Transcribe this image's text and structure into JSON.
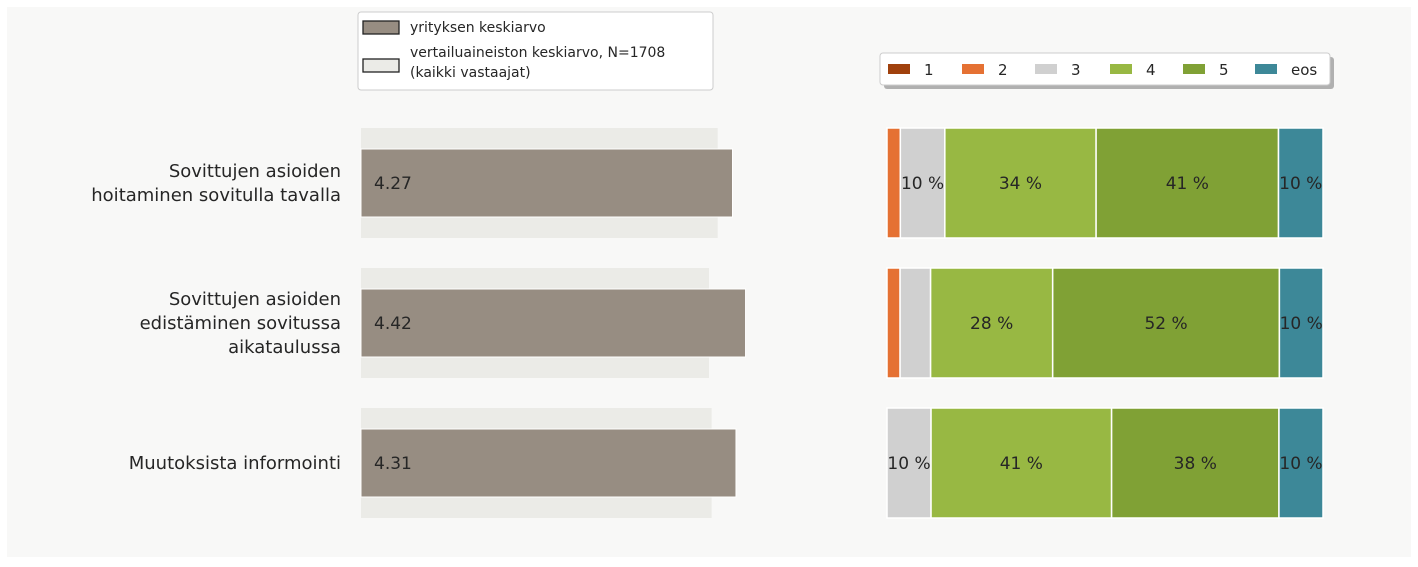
{
  "colors": {
    "panel_bg": "#f8f8f7",
    "company_bar": "#978d82",
    "company_bar_edge": "#ffffff",
    "reference_bar": "#ebebe7",
    "legend_border": "#cccccc",
    "legend_bg": "#ffffff",
    "legend_shadow": "#b0b0b0",
    "text": "#262626",
    "seg_1": "#a0410d",
    "seg_2": "#e57133",
    "seg_3": "#d0d0d0",
    "seg_4": "#98b843",
    "seg_5": "#80a135",
    "seg_eos": "#3d8898"
  },
  "legend_left": {
    "items": [
      {
        "label_lines": [
          "yrityksen keskiarvo"
        ],
        "swatch": "company"
      },
      {
        "label_lines": [
          "vertailuaineiston keskiarvo, N=1708",
          "(kaikki vastaajat)"
        ],
        "swatch": "reference"
      }
    ]
  },
  "legend_right": {
    "items": [
      "1",
      "2",
      "3",
      "4",
      "5",
      "eos"
    ]
  },
  "chart_data": [
    {
      "type": "bar",
      "orientation": "horizontal",
      "categories": [
        [
          "Sovittujen  asioiden",
          "hoitaminen sovitulla tavalla"
        ],
        [
          "Sovittujen asioiden",
          "edistäminen sovitussa",
          "aikataulussa"
        ],
        [
          "Muutoksista informointi"
        ]
      ],
      "series": [
        {
          "name": "yrityksen keskiarvo",
          "values": [
            4.27,
            4.42,
            4.31
          ],
          "value_labels": [
            "4.27",
            "4.42",
            "4.31"
          ]
        },
        {
          "name": "vertailuaineiston keskiarvo, N=1708 (kaikki vastaajat)",
          "values": [
            4.1,
            4.0,
            4.03
          ]
        }
      ],
      "xlim": [
        0,
        5
      ],
      "grid": false,
      "legend": "top"
    },
    {
      "type": "bar",
      "stacked": true,
      "normalized": true,
      "orientation": "horizontal",
      "categories": [
        "Sovittujen  asioiden hoitaminen sovitulla tavalla",
        "Sovittujen asioiden edistäminen sovitussa aikataulussa",
        "Muutoksista informointi"
      ],
      "series": [
        {
          "name": "1",
          "values": [
            0,
            0,
            0
          ],
          "labels": [
            "",
            "",
            ""
          ]
        },
        {
          "name": "2",
          "values": [
            3,
            3,
            0
          ],
          "labels": [
            "",
            "",
            ""
          ]
        },
        {
          "name": "3",
          "values": [
            10,
            7,
            10
          ],
          "labels": [
            "10 %",
            "",
            "10 %"
          ]
        },
        {
          "name": "4",
          "values": [
            34,
            28,
            41
          ],
          "labels": [
            "34 %",
            "28 %",
            "41 %"
          ]
        },
        {
          "name": "5",
          "values": [
            41,
            52,
            38
          ],
          "labels": [
            "41 %",
            "52 %",
            "38 %"
          ]
        },
        {
          "name": "eos",
          "values": [
            10,
            10,
            10
          ],
          "labels": [
            "10 %",
            "10 %",
            "10 %"
          ]
        }
      ],
      "xlim": [
        0,
        100
      ],
      "grid": false,
      "legend": "top"
    }
  ]
}
